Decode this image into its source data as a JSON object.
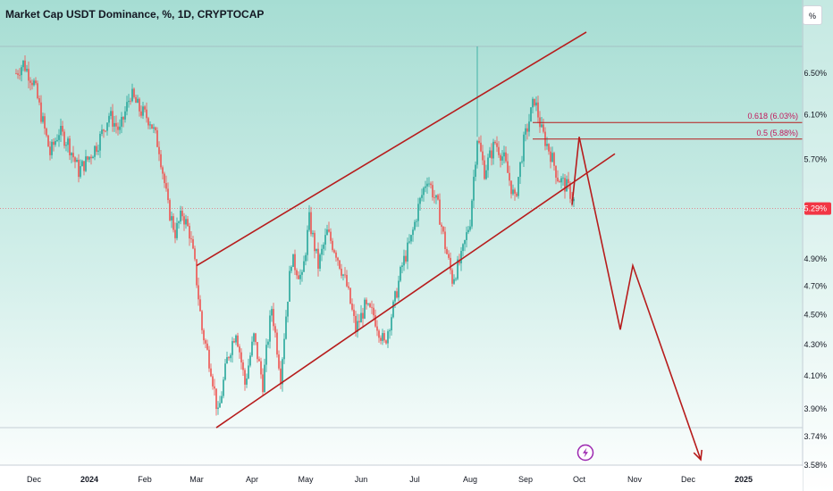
{
  "header": {
    "title": "Market Cap USDT Dominance, %, 1D, CRYPTOCAP",
    "scale_button": "%"
  },
  "colors": {
    "background_top": "#a6ddd3",
    "background_bottom": "#ffffff",
    "bullish": "#26a69a",
    "bearish": "#ef5350",
    "drawing": "#b71c1c",
    "price_tag": "#f23645"
  },
  "chart_data": {
    "type": "candlestick",
    "y_scale": "log",
    "ylim": [
      3.58,
      6.9
    ],
    "y_ticks": [
      "6.50%",
      "6.10%",
      "5.70%",
      "4.90%",
      "4.70%",
      "4.50%",
      "4.30%",
      "4.10%",
      "3.90%",
      "3.74%",
      "3.58%"
    ],
    "x_ticks": [
      "Dec",
      "2024",
      "Feb",
      "Mar",
      "Apr",
      "May",
      "Jun",
      "Jul",
      "Aug",
      "Sep",
      "Oct",
      "Nov",
      "Dec",
      "2025"
    ],
    "current_price": {
      "label": "5.29%",
      "value": 5.29
    },
    "fib_levels": [
      {
        "label": "0.618 (6.03%)",
        "value": 6.03
      },
      {
        "label": "0.5 (5.88%)",
        "value": 5.88
      }
    ],
    "price_path": [
      [
        "2023-11-21",
        6.5
      ],
      [
        "2023-11-25",
        6.6
      ],
      [
        "2023-12-01",
        6.4
      ],
      [
        "2023-12-05",
        6.1
      ],
      [
        "2023-12-10",
        5.75
      ],
      [
        "2023-12-15",
        5.95
      ],
      [
        "2023-12-20",
        5.85
      ],
      [
        "2023-12-26",
        5.6
      ],
      [
        "2023-12-31",
        5.7
      ],
      [
        "2024-01-06",
        5.85
      ],
      [
        "2024-01-12",
        6.1
      ],
      [
        "2024-01-18",
        5.95
      ],
      [
        "2024-01-24",
        6.3
      ],
      [
        "2024-01-29",
        6.15
      ],
      [
        "2024-02-04",
        6.05
      ],
      [
        "2024-02-09",
        5.8
      ],
      [
        "2024-02-14",
        5.3
      ],
      [
        "2024-02-18",
        5.1
      ],
      [
        "2024-02-22",
        5.25
      ],
      [
        "2024-02-26",
        5.1
      ],
      [
        "2024-02-29",
        4.85
      ],
      [
        "2024-03-04",
        4.4
      ],
      [
        "2024-03-09",
        4.15
      ],
      [
        "2024-03-13",
        3.86
      ],
      [
        "2024-03-18",
        4.2
      ],
      [
        "2024-03-23",
        4.4
      ],
      [
        "2024-03-28",
        4.05
      ],
      [
        "2024-04-02",
        4.35
      ],
      [
        "2024-04-07",
        4.05
      ],
      [
        "2024-04-12",
        4.55
      ],
      [
        "2024-04-17",
        4.1
      ],
      [
        "2024-04-23",
        4.9
      ],
      [
        "2024-04-29",
        4.75
      ],
      [
        "2024-05-03",
        5.2
      ],
      [
        "2024-05-08",
        4.85
      ],
      [
        "2024-05-13",
        5.1
      ],
      [
        "2024-05-18",
        4.95
      ],
      [
        "2024-05-24",
        4.7
      ],
      [
        "2024-05-29",
        4.4
      ],
      [
        "2024-06-03",
        4.55
      ],
      [
        "2024-06-08",
        4.5
      ],
      [
        "2024-06-14",
        4.3
      ],
      [
        "2024-06-19",
        4.55
      ],
      [
        "2024-06-24",
        4.85
      ],
      [
        "2024-06-29",
        5.05
      ],
      [
        "2024-07-03",
        5.3
      ],
      [
        "2024-07-08",
        5.55
      ],
      [
        "2024-07-14",
        5.3
      ],
      [
        "2024-07-18",
        5.0
      ],
      [
        "2024-07-22",
        4.75
      ],
      [
        "2024-07-27",
        4.9
      ],
      [
        "2024-08-01",
        5.2
      ],
      [
        "2024-08-05",
        5.9
      ],
      [
        "2024-08-09",
        5.6
      ],
      [
        "2024-08-15",
        5.85
      ],
      [
        "2024-08-20",
        5.7
      ],
      [
        "2024-08-26",
        5.35
      ],
      [
        "2024-08-31",
        5.85
      ],
      [
        "2024-09-06",
        6.25
      ],
      [
        "2024-09-10",
        5.95
      ],
      [
        "2024-09-15",
        5.75
      ],
      [
        "2024-09-19",
        5.55
      ],
      [
        "2024-09-25",
        5.45
      ],
      [
        "2024-09-28",
        5.35
      ]
    ],
    "drawings": {
      "channel_upper": [
        [
          "2024-03-01",
          4.85
        ],
        [
          "2024-10-05",
          6.92
        ]
      ],
      "channel_lower": [
        [
          "2024-03-12",
          3.79
        ],
        [
          "2024-10-21",
          5.75
        ]
      ],
      "projection_path": [
        [
          "2024-09-27",
          5.32
        ],
        [
          "2024-10-01",
          5.9
        ],
        [
          "2024-10-24",
          4.4
        ],
        [
          "2024-10-31",
          4.85
        ],
        [
          "2024-12-08",
          3.61
        ]
      ]
    }
  }
}
